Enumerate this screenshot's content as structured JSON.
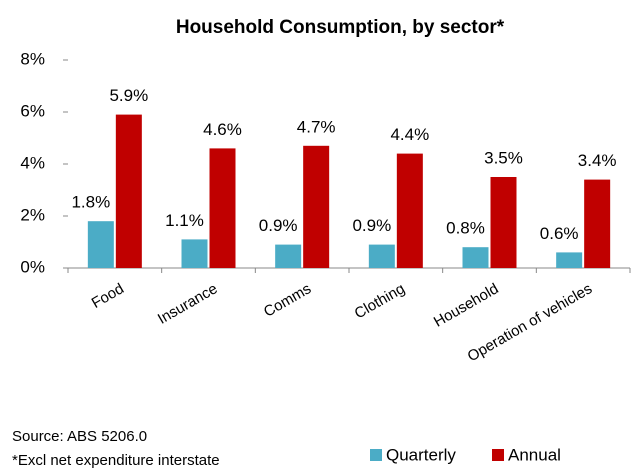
{
  "chart_data": {
    "type": "bar",
    "title": "Household Consumption, by sector*",
    "categories": [
      "Food",
      "Insurance",
      "Comms",
      "Clothing",
      "Household",
      "Operation of vehicles"
    ],
    "series": [
      {
        "name": "Quarterly",
        "color": "#4bacc6",
        "values": [
          1.8,
          1.1,
          0.9,
          0.9,
          0.8,
          0.6
        ],
        "value_labels": [
          "1.8%",
          "1.1%",
          "0.9%",
          "0.9%",
          "0.8%",
          "0.6%"
        ]
      },
      {
        "name": "Annual",
        "color": "#c00000",
        "values": [
          5.9,
          4.6,
          4.7,
          4.4,
          3.5,
          3.4
        ],
        "value_labels": [
          "5.9%",
          "4.6%",
          "4.7%",
          "4.4%",
          "3.5%",
          "3.4%"
        ]
      }
    ],
    "ylim": [
      0,
      8
    ],
    "yticks": [
      {
        "value": 0,
        "label": "0%"
      },
      {
        "value": 2,
        "label": "2%"
      },
      {
        "value": 4,
        "label": "4%"
      },
      {
        "value": 6,
        "label": "6%"
      },
      {
        "value": 8,
        "label": "8%"
      }
    ],
    "grid": false,
    "legend": "bottom-right",
    "source": "Source: ABS 5206.0",
    "note": "*Excl net expenditure interstate"
  }
}
